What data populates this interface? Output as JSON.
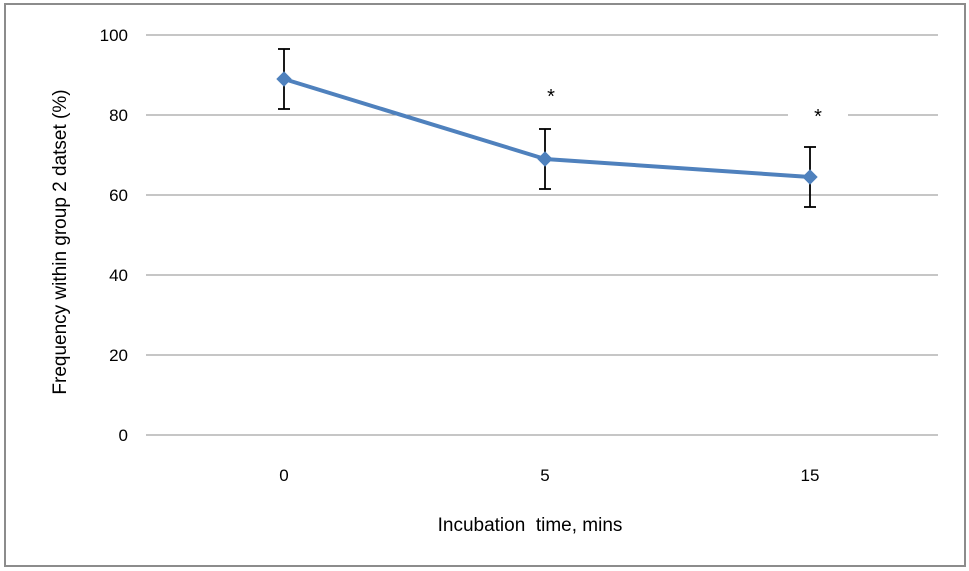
{
  "chart_data": {
    "type": "line",
    "title": "",
    "xlabel": "Incubation  time, mins",
    "ylabel": "Frequency within group 2 datset (%)",
    "categories": [
      "0",
      "5",
      "15"
    ],
    "series": [
      {
        "values": [
          89,
          69,
          64.5
        ],
        "error": [
          7.5,
          7.5,
          7.5
        ],
        "color": "#4f81bd"
      }
    ],
    "annotations": [
      "",
      "*",
      "*"
    ],
    "ylim": [
      0,
      100
    ],
    "yticks": [
      0,
      20,
      40,
      60,
      80,
      100
    ],
    "grid": true,
    "legend": "none"
  }
}
